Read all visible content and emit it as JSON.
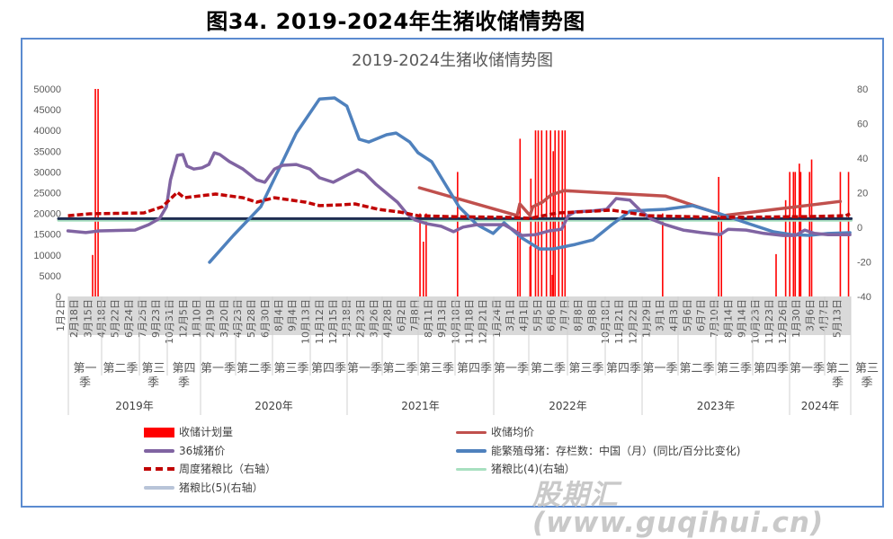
{
  "figure_title": "图34. 2019-2024年生猪收储情势图",
  "watermark": "股期汇(www.guqihui.cn)",
  "chart_data": {
    "type": "bar+line",
    "title": "2019-2024生猪收储情势图",
    "y_left": {
      "ticks": [
        "50000",
        "45000",
        "40000",
        "35000",
        "30000",
        "25000",
        "20000",
        "15000",
        "10000",
        "5000",
        "0"
      ],
      "ylim": [
        0,
        50000
      ]
    },
    "y_right": {
      "ticks": [
        "80",
        "60",
        "40",
        "20",
        "0",
        "-20",
        "-40"
      ],
      "ylim": [
        -40,
        80
      ]
    },
    "x_tick_labels": [
      "1月2日",
      "2月18日",
      "3月15日",
      "4月18日",
      "5月22日",
      "6月24日",
      "7月25日",
      "9月23日",
      "10月31日",
      "12月5日",
      "1月10日",
      "2月19日",
      "3月20日",
      "4月23日",
      "5月28日",
      "6月30日",
      "8月4日",
      "9月4日",
      "10月13日",
      "11月12日",
      "12月15日",
      "1月18日",
      "2月23日",
      "3月26日",
      "4月28日",
      "6月2日",
      "7月8日",
      "8月11日",
      "9月13日",
      "10月18日",
      "11月18日",
      "12月21日",
      "1月24日",
      "3月1日",
      "4月1日",
      "5月5日",
      "6月6日",
      "7月7日",
      "8月8日",
      "9月8日",
      "10月18日",
      "11月21日",
      "12月22日",
      "1月29日",
      "3月1日",
      "4月3日",
      "5月6日",
      "6月7日",
      "7月10日",
      "8月14日",
      "9月14日",
      "10月23日",
      "11月23日",
      "12月26日",
      "1月30日",
      "3月6日",
      "4月7日",
      "5月13日"
    ],
    "quarters": [
      "第一季",
      "第二季",
      "第三季",
      "第四季",
      "第一季",
      "第二季",
      "第三季",
      "第四季",
      "第一季",
      "第二季",
      "第三季",
      "第四季",
      "第一季",
      "第二季",
      "第三季",
      "第四季",
      "第一季",
      "第二季",
      "第三季",
      "第四季",
      "第一季",
      "第二季",
      "第三季"
    ],
    "years": [
      "2019年",
      "2020年",
      "2021年",
      "2022年",
      "2023年",
      "2024年"
    ],
    "x_note": "x values are positions on the category axis (tick index)",
    "series": [
      {
        "name": "收储计划量",
        "type": "bar",
        "axis": "left",
        "color": "#ff0000",
        "points": [
          [
            2.5,
            10000
          ],
          [
            2.7,
            50000
          ],
          [
            2.9,
            50000
          ],
          [
            26.45,
            20000
          ],
          [
            26.7,
            13200
          ],
          [
            26.9,
            20000
          ],
          [
            29.2,
            30000
          ],
          [
            33.6,
            19500
          ],
          [
            33.77,
            38000
          ],
          [
            34.5,
            12000
          ],
          [
            34.56,
            28400
          ],
          [
            34.9,
            40000
          ],
          [
            35.1,
            40000
          ],
          [
            35.35,
            40000
          ],
          [
            35.7,
            40000
          ],
          [
            36.0,
            40000
          ],
          [
            36.13,
            5200
          ],
          [
            36.2,
            35000
          ],
          [
            36.33,
            40000
          ],
          [
            36.6,
            40000
          ],
          [
            36.86,
            40000
          ],
          [
            37.06,
            40000
          ],
          [
            44.2,
            20000
          ],
          [
            48.3,
            28800
          ],
          [
            48.5,
            20000
          ],
          [
            52.5,
            10200
          ],
          [
            53.2,
            23200
          ],
          [
            53.5,
            30000
          ],
          [
            53.77,
            30000
          ],
          [
            53.9,
            30000
          ],
          [
            54.2,
            32000
          ],
          [
            54.3,
            30000
          ],
          [
            54.95,
            30000
          ],
          [
            55.1,
            33000
          ],
          [
            57.2,
            30000
          ],
          [
            57.8,
            30000
          ]
        ]
      },
      {
        "name": "收储均价",
        "type": "line",
        "axis": "left",
        "color": "#c0504d",
        "points": [
          [
            26.4,
            26200
          ],
          [
            33.55,
            19500
          ],
          [
            33.75,
            22300
          ],
          [
            34.5,
            19500
          ],
          [
            34.7,
            21600
          ],
          [
            35.4,
            22700
          ],
          [
            36.05,
            24500
          ],
          [
            37.0,
            25500
          ],
          [
            39.1,
            25100
          ],
          [
            44.4,
            24200
          ],
          [
            48.7,
            19500
          ],
          [
            57.2,
            22900
          ]
        ]
      },
      {
        "name": "36城猪价",
        "type": "line",
        "axis": "left",
        "color": "#8064a2",
        "points": [
          [
            0.7,
            15800
          ],
          [
            2.0,
            15400
          ],
          [
            3.0,
            15800
          ],
          [
            5.6,
            16000
          ],
          [
            6.6,
            17300
          ],
          [
            7.4,
            18800
          ],
          [
            7.9,
            21600
          ],
          [
            8.2,
            28100
          ],
          [
            8.7,
            34000
          ],
          [
            9.1,
            34200
          ],
          [
            9.4,
            31400
          ],
          [
            9.9,
            30700
          ],
          [
            10.5,
            31000
          ],
          [
            11.0,
            31800
          ],
          [
            11.4,
            34600
          ],
          [
            11.8,
            34200
          ],
          [
            12.5,
            32500
          ],
          [
            13.5,
            30700
          ],
          [
            14.5,
            28100
          ],
          [
            15.1,
            27500
          ],
          [
            15.8,
            30700
          ],
          [
            16.4,
            31600
          ],
          [
            17.4,
            31800
          ],
          [
            18.4,
            30700
          ],
          [
            19.1,
            28600
          ],
          [
            20.1,
            27500
          ],
          [
            21.1,
            29200
          ],
          [
            21.9,
            30500
          ],
          [
            22.4,
            29700
          ],
          [
            23.2,
            27100
          ],
          [
            24.0,
            24900
          ],
          [
            24.8,
            22700
          ],
          [
            25.5,
            19900
          ],
          [
            26.1,
            18400
          ],
          [
            27.0,
            17500
          ],
          [
            28.0,
            16900
          ],
          [
            28.9,
            15600
          ],
          [
            29.6,
            16700
          ],
          [
            30.6,
            17300
          ],
          [
            31.6,
            17300
          ],
          [
            32.6,
            17300
          ],
          [
            33.2,
            16200
          ],
          [
            33.9,
            14700
          ],
          [
            34.9,
            14900
          ],
          [
            35.9,
            15800
          ],
          [
            36.8,
            16200
          ],
          [
            37.3,
            19500
          ],
          [
            37.8,
            20400
          ],
          [
            39.1,
            20600
          ],
          [
            40.1,
            21000
          ],
          [
            40.8,
            23600
          ],
          [
            41.8,
            23200
          ],
          [
            42.6,
            20600
          ],
          [
            43.4,
            18600
          ],
          [
            44.4,
            17300
          ],
          [
            45.7,
            16000
          ],
          [
            47.0,
            15400
          ],
          [
            48.4,
            14900
          ],
          [
            49.0,
            16200
          ],
          [
            50.3,
            16000
          ],
          [
            51.6,
            15200
          ],
          [
            53.0,
            14700
          ],
          [
            53.9,
            14700
          ],
          [
            54.6,
            16000
          ],
          [
            55.3,
            15200
          ],
          [
            56.3,
            14900
          ],
          [
            57.9,
            14900
          ]
        ]
      },
      {
        "name": "能繁殖母猪：存栏数：中国（月）(同比/百分比变化)",
        "type": "line",
        "axis": "right",
        "color": "#4f81bd",
        "points": [
          [
            11.05,
            -20.2
          ],
          [
            12.8,
            -4.7
          ],
          [
            14.8,
            11.9
          ],
          [
            17.4,
            54.5
          ],
          [
            19.1,
            74.2
          ],
          [
            20.2,
            74.8
          ],
          [
            21.1,
            70.1
          ],
          [
            22.0,
            50.9
          ],
          [
            22.7,
            49.3
          ],
          [
            24.0,
            53.5
          ],
          [
            24.7,
            54.5
          ],
          [
            25.7,
            49.3
          ],
          [
            26.3,
            43.1
          ],
          [
            27.3,
            37.9
          ],
          [
            28.3,
            24.9
          ],
          [
            29.3,
            11.9
          ],
          [
            30.6,
            1.6
          ],
          [
            31.8,
            -3.6
          ],
          [
            32.6,
            2.6
          ],
          [
            33.9,
            -6.2
          ],
          [
            35.2,
            -12.5
          ],
          [
            36.2,
            -12.5
          ],
          [
            37.8,
            -9.9
          ],
          [
            39.1,
            -7.3
          ],
          [
            40.5,
            1.6
          ],
          [
            41.8,
            9.3
          ],
          [
            43.1,
            9.9
          ],
          [
            44.4,
            10.4
          ],
          [
            46.4,
            12.5
          ],
          [
            48.4,
            7.8
          ],
          [
            50.3,
            2.6
          ],
          [
            52.3,
            -2.6
          ],
          [
            53.6,
            -4.2
          ],
          [
            54.9,
            -4.7
          ],
          [
            56.3,
            -3.6
          ],
          [
            57.9,
            -3.1
          ]
        ]
      },
      {
        "name": "周度猪粮比（右轴）",
        "type": "line",
        "axis": "right",
        "color": "#c00000",
        "dashed": true,
        "points": [
          [
            0.7,
            6.7
          ],
          [
            2.3,
            7.8
          ],
          [
            6.25,
            8.3
          ],
          [
            7.6,
            11.9
          ],
          [
            8.7,
            20.2
          ],
          [
            9.2,
            17.1
          ],
          [
            11.5,
            19.2
          ],
          [
            13.5,
            17.1
          ],
          [
            14.5,
            14.5
          ],
          [
            15.8,
            17.1
          ],
          [
            18.1,
            14.5
          ],
          [
            19.1,
            12.5
          ],
          [
            20.7,
            13.0
          ],
          [
            21.7,
            13.5
          ],
          [
            23.4,
            10.4
          ],
          [
            25.0,
            8.8
          ],
          [
            26.3,
            6.7
          ],
          [
            28.6,
            6.2
          ],
          [
            33.2,
            5.7
          ],
          [
            34.5,
            5.2
          ],
          [
            36.5,
            8.3
          ],
          [
            37.8,
            8.8
          ],
          [
            40.5,
            9.9
          ],
          [
            41.8,
            8.3
          ],
          [
            43.1,
            6.7
          ],
          [
            48.4,
            5.7
          ],
          [
            54.9,
            6.2
          ],
          [
            57.6,
            6.7
          ],
          [
            57.9,
            7.8
          ]
        ]
      },
      {
        "name": "猪粮比(4)(右轴）",
        "type": "line",
        "axis": "right",
        "color": "#a8e0c0",
        "points": [
          [
            0,
            4
          ],
          [
            58,
            4
          ]
        ]
      },
      {
        "name": "猪粮比(5)(右轴）",
        "type": "line",
        "axis": "right",
        "color": "#b8c4d8",
        "plot_color": "#1f2d52",
        "points": [
          [
            0,
            5
          ],
          [
            58,
            5
          ]
        ]
      }
    ]
  }
}
